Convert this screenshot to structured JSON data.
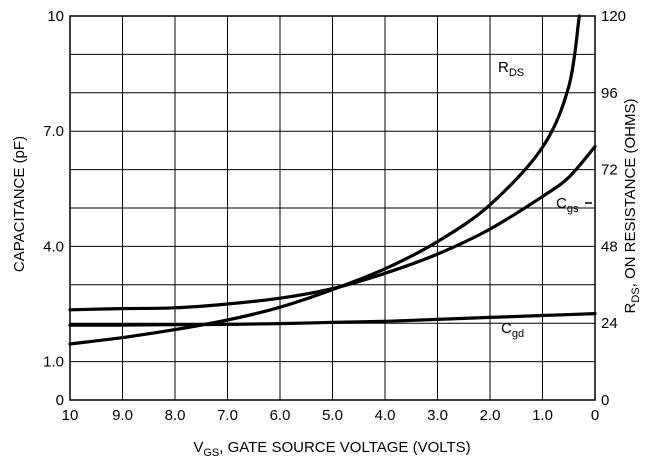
{
  "chart_data": {
    "type": "line",
    "x_axis": {
      "label_main": "V",
      "label_sub": "GS",
      "label_rest": ", GATE SOURCE VOLTAGE (VOLTS)",
      "range": [
        10,
        0
      ],
      "reversed": true,
      "ticks": [
        10,
        9,
        8,
        7,
        6,
        5,
        4,
        3,
        2,
        1,
        0
      ],
      "tick_labels": [
        "10",
        "9.0",
        "8.0",
        "7.0",
        "6.0",
        "5.0",
        "4.0",
        "3.0",
        "2.0",
        "1.0",
        "0"
      ]
    },
    "y_left": {
      "label": "CAPACITANCE (pF)",
      "range": [
        0,
        10
      ],
      "tick_values": [
        0,
        1,
        4,
        7,
        10
      ],
      "tick_labels": [
        "0",
        "1.0",
        "4.0",
        "7.0",
        "10"
      ]
    },
    "y_right": {
      "label_main": "R",
      "label_sub": "DS",
      "label_rest": ", ON RESISTANCE (OHMS)",
      "range": [
        0,
        120
      ],
      "tick_values": [
        0,
        24,
        48,
        72,
        96,
        120
      ],
      "tick_labels": [
        "0",
        "24",
        "48",
        "72",
        "96",
        "120"
      ]
    },
    "grid": true,
    "series": [
      {
        "name_main": "R",
        "name_sub": "DS",
        "axis": "right",
        "x": [
          10,
          9,
          8,
          7,
          6,
          5,
          4,
          3,
          2,
          1,
          0.5,
          0.3
        ],
        "y": [
          17.5,
          19.5,
          22,
          25,
          29,
          34.5,
          41,
          49.5,
          61,
          79,
          98,
          120
        ]
      },
      {
        "name_main": "C",
        "name_sub": "gs",
        "axis": "left",
        "x": [
          10,
          9,
          8,
          7,
          6,
          5,
          4,
          3,
          2,
          1,
          0.5,
          0
        ],
        "y": [
          2.35,
          2.38,
          2.4,
          2.5,
          2.65,
          2.9,
          3.3,
          3.8,
          4.45,
          5.3,
          5.8,
          6.6
        ]
      },
      {
        "name_main": "C",
        "name_sub": "gd",
        "axis": "left",
        "x": [
          10,
          9,
          8,
          7,
          6,
          5,
          4,
          3,
          2,
          1,
          0
        ],
        "y": [
          1.95,
          1.95,
          1.96,
          1.97,
          1.99,
          2.02,
          2.05,
          2.1,
          2.15,
          2.2,
          2.25
        ]
      }
    ]
  }
}
